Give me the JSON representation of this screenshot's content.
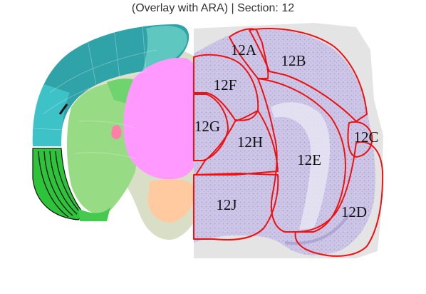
{
  "title": "(Overlay with ARA) | Section: 12",
  "regions": [
    {
      "label": "12A"
    },
    {
      "label": "12B"
    },
    {
      "label": "12C"
    },
    {
      "label": "12D"
    },
    {
      "label": "12E"
    },
    {
      "label": "12F"
    },
    {
      "label": "12G"
    },
    {
      "label": "12H"
    },
    {
      "label": "12J"
    }
  ],
  "colors": {
    "outline": "#ee1111",
    "tissue": "#c9c2e2",
    "atlas_teal": "#2fa3a8",
    "atlas_green": "#97dc84",
    "atlas_pink": "#ff99ff",
    "atlas_peach": "#ffcaa0",
    "atlas_dark_green": "#2ec43a"
  }
}
